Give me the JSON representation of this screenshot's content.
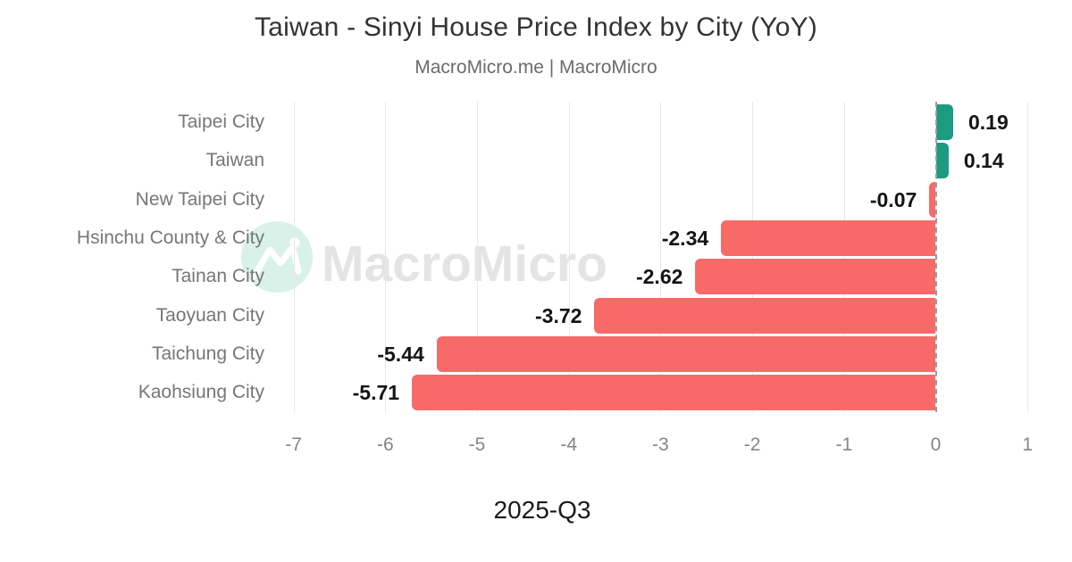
{
  "title": "Taiwan - Sinyi House Price Index by City (YoY)",
  "subtitle": "MacroMicro.me | MacroMicro",
  "watermark": {
    "text": "MacroMicro"
  },
  "colors": {
    "positive_bar": "#1c9a82",
    "negative_bar": "#f76a68",
    "gridline": "#e8e8e8",
    "zero_line": "#9c9c9c",
    "watermark_circle": "#d9f2e9",
    "watermark_text": "#e4e4e4"
  },
  "chart_data": {
    "type": "bar",
    "orientation": "horizontal",
    "title": "Taiwan - Sinyi House Price Index by City (YoY)",
    "subtitle": "MacroMicro.me | MacroMicro",
    "xlabel": "2025-Q3",
    "categories": [
      "Taipei City",
      "Taiwan",
      "New Taipei City",
      "Hsinchu County & City",
      "Tainan City",
      "Taoyuan City",
      "Taichung City",
      "Kaohsiung City"
    ],
    "values": [
      0.19,
      0.14,
      -0.07,
      -2.34,
      -2.62,
      -3.72,
      -5.44,
      -5.71
    ],
    "value_labels": [
      "0.19",
      "0.14",
      "-0.07",
      "-2.34",
      "-2.62",
      "-3.72",
      "-5.44",
      "-5.71"
    ],
    "xlim": [
      -7,
      1
    ],
    "xticks": [
      -7,
      -6,
      -5,
      -4,
      -3,
      -2,
      -1,
      0,
      1
    ],
    "grid": true,
    "zero_line": "dashed",
    "legend": "none"
  }
}
